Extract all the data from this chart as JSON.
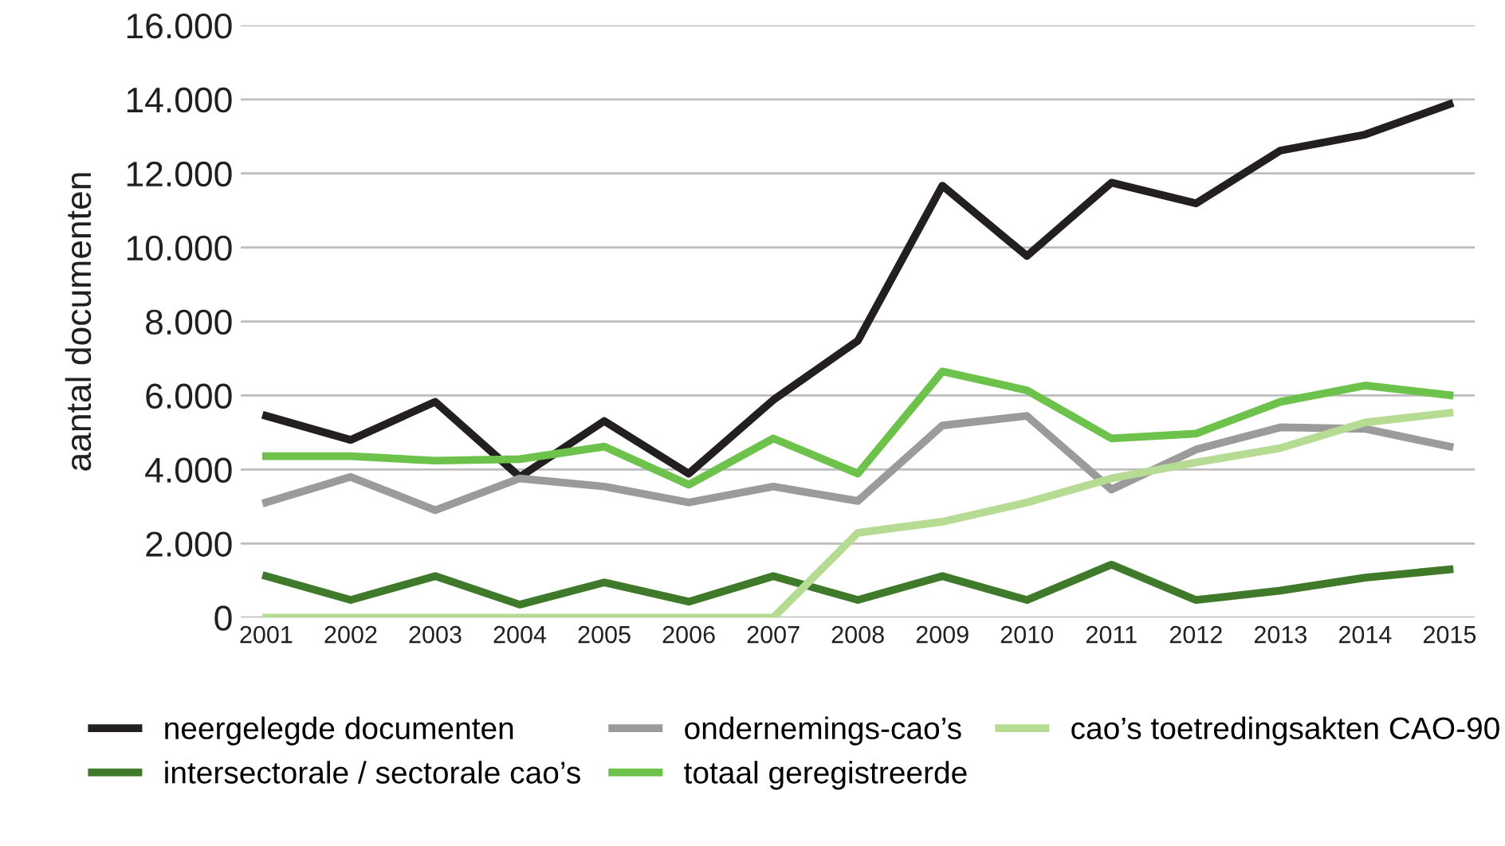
{
  "chart_data": {
    "type": "line",
    "ylabel": "aantal documenten",
    "categories": [
      "2001",
      "2002",
      "2003",
      "2004",
      "2005",
      "2006",
      "2007",
      "2008",
      "2009",
      "2010",
      "2011",
      "2012",
      "2013",
      "2014",
      "2015"
    ],
    "series": [
      {
        "name": "neergelegde documenten",
        "color": "#231f20",
        "values": [
          5450,
          4800,
          5830,
          3800,
          5310,
          3890,
          5880,
          7480,
          11670,
          9770,
          11750,
          11190,
          12620,
          13050,
          13870
        ]
      },
      {
        "name": "intersectorale / sectorale cao’s",
        "color": "#3f7a2a",
        "values": [
          1120,
          475,
          1120,
          350,
          950,
          430,
          1120,
          475,
          1120,
          475,
          1430,
          475,
          730,
          1080,
          1300
        ]
      },
      {
        "name": "ondernemings-cao’s",
        "color": "#9b9b9b",
        "values": [
          3110,
          3800,
          2900,
          3760,
          3540,
          3110,
          3540,
          3150,
          5190,
          5450,
          3460,
          4540,
          5140,
          5100,
          4620
        ]
      },
      {
        "name": "totaal geregistreerde",
        "color": "#6cc24a",
        "values": [
          4360,
          4360,
          4240,
          4280,
          4620,
          3590,
          4840,
          3890,
          6650,
          6140,
          4840,
          4970,
          5830,
          6270,
          6010
        ]
      },
      {
        "name": "cao’s toetredingsakten CAO-90",
        "color": "#b5dc92",
        "values": [
          0,
          0,
          0,
          0,
          0,
          0,
          0,
          2290,
          2590,
          3110,
          3760,
          4190,
          4580,
          5270,
          5530
        ]
      }
    ],
    "ylim": [
      0,
      16000
    ],
    "yticks": [
      {
        "value": 0,
        "label": "0"
      },
      {
        "value": 2000,
        "label": "2.000"
      },
      {
        "value": 4000,
        "label": "4.000"
      },
      {
        "value": 6000,
        "label": "6.000"
      },
      {
        "value": 8000,
        "label": "8.000"
      },
      {
        "value": 10000,
        "label": "10.000"
      },
      {
        "value": 12000,
        "label": "12.000"
      },
      {
        "value": 14000,
        "label": "14.000"
      },
      {
        "value": 16000,
        "label": "16.000"
      }
    ],
    "grid": "y",
    "legend": "bottom",
    "marker": "none",
    "line_style": "solid"
  }
}
